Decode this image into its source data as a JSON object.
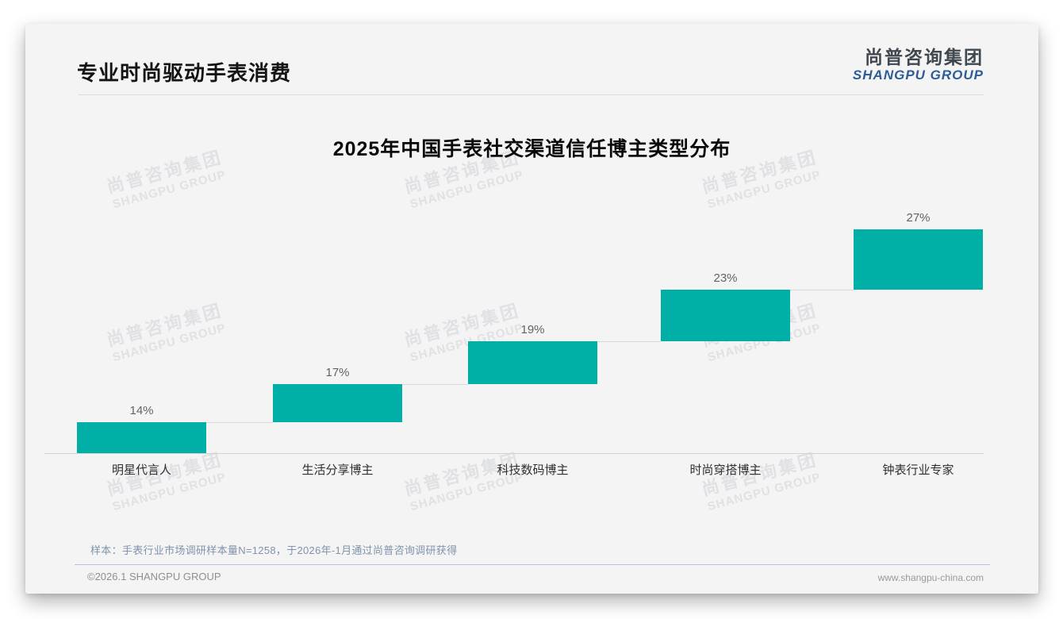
{
  "page": {
    "header": {
      "title": "专业时尚驱动手表消费"
    },
    "logo": {
      "cn": "尚普咨询集团",
      "en": "SHANGPU GROUP"
    },
    "watermark": {
      "line1": "尚普咨询集团",
      "line2": "SHANGPU GROUP"
    },
    "footer": {
      "sample_note": "样本：手表行业市场调研样本量N=1258，于2026年-1月通过尚普咨询调研获得",
      "copyright": "©2026.1 SHANGPU GROUP",
      "website": "www.shangpu-china.com"
    },
    "colors": {
      "bar_teal": "#00afa5",
      "logo_blue": "#2d5c96",
      "sample_note_blue_gray": "#8093ab",
      "card_background": "#f4f4f5"
    }
  },
  "chart_data": {
    "type": "bar",
    "subtype": "waterfall-step",
    "title": "2025年中国手表社交渠道信任博主类型分布",
    "categories": [
      "明星代言人",
      "生活分享博主",
      "科技数码博主",
      "时尚穿搭博主",
      "钟表行业专家"
    ],
    "values": [
      14,
      17,
      19,
      23,
      27
    ],
    "value_labels": [
      "14%",
      "17%",
      "19%",
      "23%",
      "27%"
    ],
    "cumulative": [
      14,
      31,
      50,
      73,
      100
    ],
    "unit": "%",
    "ylim": [
      0,
      100
    ],
    "xlabel": "",
    "ylabel": "",
    "grid": false,
    "legend": false,
    "bar_color": "#00afa5"
  }
}
